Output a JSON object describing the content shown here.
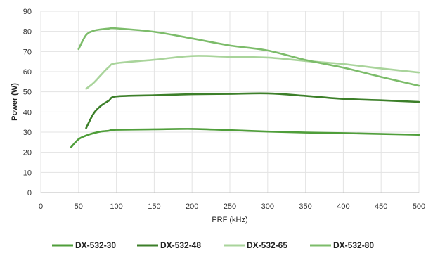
{
  "chart_data": {
    "type": "line",
    "xlabel": "PRF (kHz)",
    "ylabel": "Power (W)",
    "xlim": [
      0,
      500
    ],
    "ylim": [
      0,
      90
    ],
    "xticks": [
      0,
      50,
      100,
      150,
      200,
      250,
      300,
      350,
      400,
      450,
      500
    ],
    "yticks": [
      0,
      10,
      20,
      30,
      40,
      50,
      60,
      70,
      80,
      90
    ],
    "grid": true,
    "legend_position": "bottom",
    "series": [
      {
        "name": "DX-532-30",
        "color": "#4f9e3a",
        "x": [
          40,
          50,
          60,
          70,
          80,
          90,
          100,
          150,
          200,
          250,
          300,
          350,
          400,
          450,
          500
        ],
        "y": [
          22.5,
          26.5,
          28.3,
          29.5,
          30.3,
          30.7,
          31.2,
          31.4,
          31.6,
          31.0,
          30.3,
          29.8,
          29.5,
          29.1,
          28.7
        ]
      },
      {
        "name": "DX-532-48",
        "color": "#3c7f29",
        "x": [
          60,
          70,
          80,
          90,
          100,
          150,
          200,
          250,
          300,
          350,
          400,
          450,
          500
        ],
        "y": [
          32,
          39.3,
          43.2,
          45.6,
          47.7,
          48.3,
          48.8,
          49.0,
          49.2,
          48.0,
          46.5,
          45.8,
          45.0
        ]
      },
      {
        "name": "DX-532-65",
        "color": "#a9d49b",
        "x": [
          60,
          70,
          80,
          90,
          100,
          150,
          200,
          250,
          300,
          350,
          400,
          450,
          500
        ],
        "y": [
          51.5,
          54.5,
          58.5,
          62.3,
          64.2,
          65.9,
          67.8,
          67.4,
          67.0,
          65.3,
          63.8,
          61.6,
          59.6
        ]
      },
      {
        "name": "DX-532-80",
        "color": "#7cbc6a",
        "x": [
          50,
          60,
          70,
          80,
          90,
          100,
          150,
          200,
          250,
          300,
          350,
          400,
          450,
          500
        ],
        "y": [
          71.2,
          78.2,
          80.3,
          81.0,
          81.4,
          81.5,
          79.8,
          76.5,
          73.0,
          70.5,
          65.8,
          62.0,
          57.4,
          53.0
        ]
      }
    ]
  }
}
